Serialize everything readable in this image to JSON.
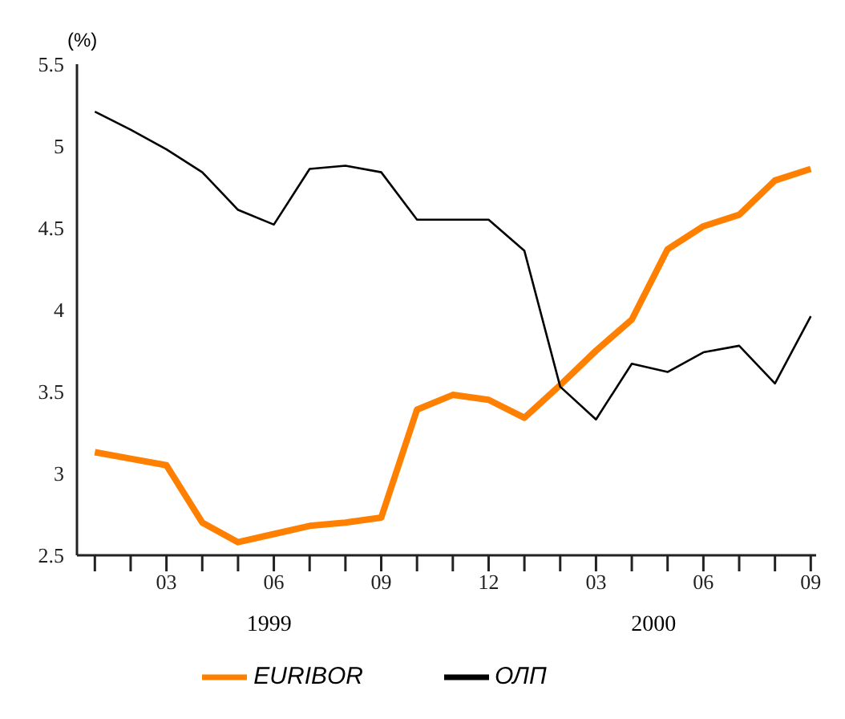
{
  "chart_data": {
    "type": "line",
    "ylabel": "(%)",
    "categories": [
      null,
      null,
      "03",
      null,
      null,
      "06",
      null,
      null,
      "09",
      null,
      null,
      "12",
      null,
      null,
      "03",
      null,
      null,
      "06",
      null,
      null,
      "09"
    ],
    "annotations": [
      "1999",
      "2000"
    ],
    "series": [
      {
        "name": "EURIBOR",
        "color": "#ff8000",
        "values": [
          3.13,
          3.09,
          3.05,
          2.7,
          2.58,
          2.63,
          2.68,
          2.7,
          2.73,
          3.39,
          3.48,
          3.45,
          3.34,
          3.54,
          3.75,
          3.94,
          4.37,
          4.51,
          4.58,
          4.79,
          4.86
        ]
      },
      {
        "name": "ОЛП",
        "color": "#000000",
        "values": [
          5.21,
          5.1,
          4.98,
          4.84,
          4.61,
          4.52,
          4.86,
          4.88,
          4.84,
          4.55,
          4.55,
          4.55,
          4.36,
          3.53,
          3.33,
          3.67,
          3.62,
          3.74,
          3.78,
          3.55,
          3.96
        ]
      }
    ],
    "ylim": [
      2.5,
      5.5
    ],
    "yticks": [
      2.5,
      3,
      3.5,
      4,
      4.5,
      5,
      5.5
    ],
    "grid": false,
    "legend": "bottom",
    "marker": "none",
    "line_style": "solid"
  }
}
